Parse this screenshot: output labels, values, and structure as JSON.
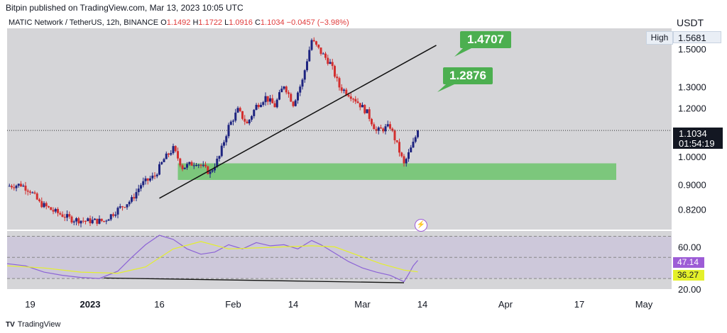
{
  "header": {
    "publisher": "Bitpin published on TradingView.com, Mar 13, 2023 10:05 UTC",
    "pair": "MATIC Network / TetherUS, 12h, BINANCE",
    "ohlc": {
      "o_label": "O",
      "o": "1.1492",
      "h_label": "H",
      "h": "1.1722",
      "l_label": "L",
      "l": "1.0916",
      "c_label": "C",
      "c": "1.1034",
      "change": "−0.0457 (−3.98%)"
    }
  },
  "axis": {
    "currency": "USDT",
    "high_label": "High",
    "high_value": "1.5681",
    "last_price": "1.1034",
    "countdown": "01:54:19",
    "rsi_value": "47.14",
    "rsi_ma_value": "36.27"
  },
  "callouts": {
    "upper": "1.4707",
    "lower": "1.2876"
  },
  "footer": {
    "brand": "TradingView"
  },
  "colors": {
    "up": "#1e2480",
    "down": "#d32f2f",
    "zone": "#6cc46c",
    "rsi": "#8c63d6",
    "rsi_ma": "#e4f02a",
    "bg": "#d5d5d8"
  },
  "icons": {
    "event": "lightning-bolt-icon",
    "logo": "tradingview-logo-icon"
  },
  "chart_data": {
    "type": "candlestick",
    "title": "MATIC Network / TetherUS, 12h, BINANCE",
    "y_scale": "log",
    "ylim": [
      0.76,
      1.62
    ],
    "y_ticks": [
      "1.5000",
      "1.3000",
      "1.2000",
      "1.0000",
      "0.9000",
      "0.8200"
    ],
    "y_tick_values": [
      1.5,
      1.3,
      1.2,
      1.0,
      0.9,
      0.82
    ],
    "x_ticks": [
      "19",
      "2023",
      "16",
      "Feb",
      "14",
      "Mar",
      "14",
      "Apr",
      "17",
      "May"
    ],
    "x_tick_dates": [
      "2022-12-19",
      "2023-01-01",
      "2023-01-16",
      "2023-02-01",
      "2023-02-14",
      "2023-03-01",
      "2023-03-14",
      "2023-04-01",
      "2023-04-17",
      "2023-05-01"
    ],
    "x_range": [
      "2022-12-14",
      "2023-05-07"
    ],
    "close_path": [
      [
        "2022-12-14",
        0.895
      ],
      [
        "2022-12-17",
        0.9
      ],
      [
        "2022-12-19",
        0.88
      ],
      [
        "2022-12-21",
        0.84
      ],
      [
        "2022-12-24",
        0.815
      ],
      [
        "2022-12-28",
        0.79
      ],
      [
        "2022-12-31",
        0.785
      ],
      [
        "2023-01-04",
        0.785
      ],
      [
        "2023-01-07",
        0.82
      ],
      [
        "2023-01-10",
        0.85
      ],
      [
        "2023-01-12",
        0.9
      ],
      [
        "2023-01-15",
        0.93
      ],
      [
        "2023-01-17",
        0.99
      ],
      [
        "2023-01-19",
        1.03
      ],
      [
        "2023-01-21",
        0.96
      ],
      [
        "2023-01-24",
        0.98
      ],
      [
        "2023-01-27",
        0.94
      ],
      [
        "2023-01-29",
        1.0
      ],
      [
        "2023-01-31",
        1.12
      ],
      [
        "2023-02-02",
        1.19
      ],
      [
        "2023-02-04",
        1.13
      ],
      [
        "2023-02-06",
        1.21
      ],
      [
        "2023-02-08",
        1.25
      ],
      [
        "2023-02-10",
        1.21
      ],
      [
        "2023-02-12",
        1.31
      ],
      [
        "2023-02-14",
        1.22
      ],
      [
        "2023-02-16",
        1.33
      ],
      [
        "2023-02-18",
        1.55
      ],
      [
        "2023-02-20",
        1.48
      ],
      [
        "2023-02-22",
        1.42
      ],
      [
        "2023-02-24",
        1.3
      ],
      [
        "2023-02-27",
        1.25
      ],
      [
        "2023-03-02",
        1.18
      ],
      [
        "2023-03-04",
        1.1
      ],
      [
        "2023-03-07",
        1.12
      ],
      [
        "2023-03-09",
        1.02
      ],
      [
        "2023-03-10",
        0.97
      ],
      [
        "2023-03-11",
        1.01
      ],
      [
        "2023-03-12",
        1.05
      ],
      [
        "2023-03-13",
        1.1034
      ]
    ],
    "support_zone": {
      "from": 0.916,
      "to": 0.975
    },
    "trendline": {
      "from": [
        "2023-01-16",
        0.855
      ],
      "to": [
        "2023-03-17",
        1.52
      ]
    },
    "high_marker": 1.5681,
    "last_close": 1.1034,
    "targets": [
      1.4707,
      1.2876
    ],
    "rsi": {
      "ylim": [
        20,
        75
      ],
      "y_ticks": [
        "60.00",
        "20.00"
      ],
      "y_tick_values": [
        60,
        20
      ],
      "levels": [
        70,
        50,
        30
      ],
      "values": [
        [
          "2022-12-14",
          44
        ],
        [
          "2022-12-18",
          42
        ],
        [
          "2022-12-22",
          36
        ],
        [
          "2022-12-26",
          33
        ],
        [
          "2022-12-30",
          31
        ],
        [
          "2023-01-03",
          30
        ],
        [
          "2023-01-07",
          37
        ],
        [
          "2023-01-10",
          50
        ],
        [
          "2023-01-13",
          62
        ],
        [
          "2023-01-16",
          71
        ],
        [
          "2023-01-19",
          67
        ],
        [
          "2023-01-22",
          58
        ],
        [
          "2023-01-25",
          53
        ],
        [
          "2023-01-28",
          55
        ],
        [
          "2023-01-31",
          62
        ],
        [
          "2023-02-03",
          58
        ],
        [
          "2023-02-06",
          64
        ],
        [
          "2023-02-09",
          61
        ],
        [
          "2023-02-12",
          62
        ],
        [
          "2023-02-15",
          58
        ],
        [
          "2023-02-18",
          66
        ],
        [
          "2023-02-20",
          62
        ],
        [
          "2023-02-23",
          54
        ],
        [
          "2023-02-26",
          46
        ],
        [
          "2023-03-01",
          40
        ],
        [
          "2023-03-04",
          36
        ],
        [
          "2023-03-07",
          33
        ],
        [
          "2023-03-10",
          27
        ],
        [
          "2023-03-11",
          34
        ],
        [
          "2023-03-12",
          42
        ],
        [
          "2023-03-13",
          47.14
        ]
      ],
      "ma_values": [
        [
          "2022-12-14",
          42
        ],
        [
          "2022-12-22",
          40
        ],
        [
          "2022-12-30",
          36
        ],
        [
          "2023-01-07",
          35
        ],
        [
          "2023-01-13",
          41
        ],
        [
          "2023-01-19",
          58
        ],
        [
          "2023-01-25",
          65
        ],
        [
          "2023-01-31",
          58
        ],
        [
          "2023-02-06",
          59
        ],
        [
          "2023-02-12",
          60
        ],
        [
          "2023-02-18",
          61
        ],
        [
          "2023-02-23",
          60
        ],
        [
          "2023-02-28",
          52
        ],
        [
          "2023-03-05",
          44
        ],
        [
          "2023-03-10",
          38
        ],
        [
          "2023-03-13",
          36.27
        ]
      ],
      "divergence": {
        "from": [
          "2023-01-04",
          30.5
        ],
        "to": [
          "2023-03-10",
          26
        ]
      }
    }
  }
}
